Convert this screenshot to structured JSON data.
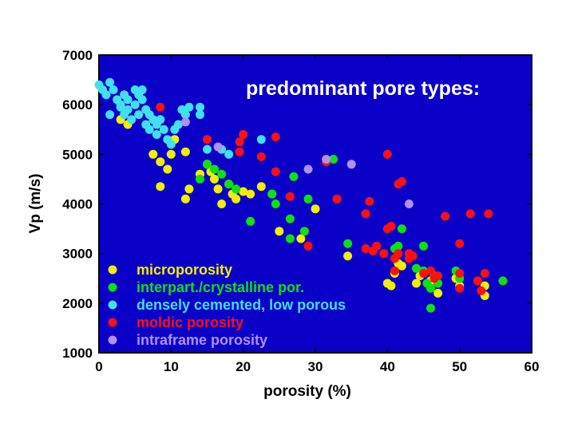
{
  "chart_data": {
    "type": "scatter",
    "title": "",
    "annotation": "predominant pore types:",
    "xlabel": "porosity (%)",
    "ylabel": "Vp (m/s)",
    "xlim": [
      0,
      60
    ],
    "ylim": [
      1000,
      7000
    ],
    "xticks": [
      0,
      10,
      20,
      30,
      40,
      50,
      60
    ],
    "yticks": [
      1000,
      2000,
      3000,
      4000,
      5000,
      6000,
      7000
    ],
    "grid": false,
    "plot_background": "#0a00c8",
    "legend_position": "bottom-left",
    "series": [
      {
        "name": "microporosity",
        "color": "#f0f000",
        "points": [
          [
            3,
            5700
          ],
          [
            4,
            5600
          ],
          [
            7.5,
            5000
          ],
          [
            8.5,
            4850
          ],
          [
            9.5,
            4700
          ],
          [
            8.5,
            4350
          ],
          [
            10,
            5000
          ],
          [
            10.5,
            5300
          ],
          [
            12,
            5050
          ],
          [
            12,
            4100
          ],
          [
            12.5,
            4300
          ],
          [
            14,
            4600
          ],
          [
            15,
            4800
          ],
          [
            15.5,
            4650
          ],
          [
            16,
            4500
          ],
          [
            16.5,
            4300
          ],
          [
            17,
            4000
          ],
          [
            18,
            4400
          ],
          [
            18.5,
            4200
          ],
          [
            19,
            4100
          ],
          [
            20,
            4250
          ],
          [
            21,
            4200
          ],
          [
            22.5,
            4350
          ],
          [
            24,
            4200
          ],
          [
            25,
            3450
          ],
          [
            28,
            3300
          ],
          [
            30,
            3900
          ],
          [
            34.5,
            2950
          ],
          [
            40,
            2400
          ],
          [
            40.5,
            2350
          ],
          [
            41,
            2600
          ],
          [
            41.5,
            2800
          ],
          [
            42,
            2750
          ],
          [
            44,
            2400
          ],
          [
            44.5,
            2550
          ],
          [
            46,
            2450
          ],
          [
            47,
            2200
          ],
          [
            49.5,
            2500
          ],
          [
            50,
            2350
          ],
          [
            53.5,
            2350
          ],
          [
            53.5,
            2150
          ]
        ]
      },
      {
        "name": "interpart./crystalline por.",
        "color": "#10e010",
        "points": [
          [
            14,
            4500
          ],
          [
            15,
            4800
          ],
          [
            16,
            4700
          ],
          [
            17,
            4600
          ],
          [
            18,
            4400
          ],
          [
            19,
            4300
          ],
          [
            21,
            3650
          ],
          [
            24,
            4200
          ],
          [
            24.5,
            4000
          ],
          [
            26.5,
            3700
          ],
          [
            26.5,
            3300
          ],
          [
            27,
            4550
          ],
          [
            28.5,
            3450
          ],
          [
            29,
            4100
          ],
          [
            32.5,
            4900
          ],
          [
            34.5,
            3200
          ],
          [
            41,
            3100
          ],
          [
            41.5,
            3150
          ],
          [
            42,
            3500
          ],
          [
            43,
            3000
          ],
          [
            45,
            3150
          ],
          [
            44,
            2700
          ],
          [
            45,
            2650
          ],
          [
            45.5,
            2400
          ],
          [
            46,
            2300
          ],
          [
            46,
            1900
          ],
          [
            46.5,
            2550
          ],
          [
            47,
            2400
          ],
          [
            49.5,
            2650
          ],
          [
            50,
            2500
          ],
          [
            56,
            2450
          ]
        ]
      },
      {
        "name": "densely cemented, low porous",
        "color": "#40e0f0",
        "points": [
          [
            0,
            6400
          ],
          [
            0.5,
            6300
          ],
          [
            1,
            6200
          ],
          [
            1.5,
            6450
          ],
          [
            1.5,
            5800
          ],
          [
            2,
            6300
          ],
          [
            2.5,
            6100
          ],
          [
            3,
            6000
          ],
          [
            3,
            5950
          ],
          [
            3.5,
            6200
          ],
          [
            3.5,
            5800
          ],
          [
            4,
            6100
          ],
          [
            4,
            5900
          ],
          [
            4.5,
            5700
          ],
          [
            5,
            6000
          ],
          [
            5,
            6300
          ],
          [
            5.5,
            6200
          ],
          [
            5.5,
            5800
          ],
          [
            6,
            6100
          ],
          [
            6,
            6300
          ],
          [
            6.5,
            5900
          ],
          [
            6.5,
            5600
          ],
          [
            7,
            5800
          ],
          [
            7,
            5500
          ],
          [
            7.5,
            5700
          ],
          [
            8,
            5600
          ],
          [
            8,
            5400
          ],
          [
            8.5,
            5700
          ],
          [
            9,
            5500
          ],
          [
            9.5,
            5300
          ],
          [
            10,
            5200
          ],
          [
            10.5,
            5500
          ],
          [
            11,
            5600
          ],
          [
            11.5,
            5900
          ],
          [
            12,
            5800
          ],
          [
            12.5,
            5950
          ],
          [
            14,
            5950
          ],
          [
            14,
            5800
          ],
          [
            15,
            5100
          ],
          [
            17,
            5100
          ],
          [
            18,
            5000
          ],
          [
            22.5,
            5300
          ]
        ]
      },
      {
        "name": "moldic porosity",
        "color": "#ff1010",
        "points": [
          [
            8.5,
            5950
          ],
          [
            15,
            5300
          ],
          [
            19.5,
            5250
          ],
          [
            20,
            5400
          ],
          [
            19.5,
            5050
          ],
          [
            22.5,
            4950
          ],
          [
            24.5,
            5350
          ],
          [
            24.5,
            4650
          ],
          [
            26.5,
            4150
          ],
          [
            29,
            3150
          ],
          [
            31.5,
            4850
          ],
          [
            33,
            4100
          ],
          [
            37,
            3800
          ],
          [
            37,
            3100
          ],
          [
            37.5,
            4050
          ],
          [
            38,
            3050
          ],
          [
            38.5,
            3150
          ],
          [
            39.5,
            3000
          ],
          [
            40,
            3500
          ],
          [
            40,
            5000
          ],
          [
            40.5,
            3550
          ],
          [
            41,
            2900
          ],
          [
            41,
            2650
          ],
          [
            41.5,
            3000
          ],
          [
            41.5,
            4400
          ],
          [
            42,
            4450
          ],
          [
            43,
            3000
          ],
          [
            43,
            2900
          ],
          [
            43.5,
            2950
          ],
          [
            45,
            2600
          ],
          [
            46,
            2650
          ],
          [
            46.5,
            2500
          ],
          [
            47,
            2550
          ],
          [
            48,
            3750
          ],
          [
            50,
            3200
          ],
          [
            50,
            2600
          ],
          [
            50,
            2300
          ],
          [
            51.5,
            3800
          ],
          [
            52.5,
            2450
          ],
          [
            53,
            2250
          ],
          [
            53.5,
            2600
          ],
          [
            54,
            3800
          ]
        ]
      },
      {
        "name": "intraframe porosity",
        "color": "#b090f0",
        "points": [
          [
            12,
            5650
          ],
          [
            16.5,
            5150
          ],
          [
            29,
            4700
          ],
          [
            31.5,
            4900
          ],
          [
            35,
            4800
          ],
          [
            43,
            4000
          ]
        ]
      }
    ]
  }
}
